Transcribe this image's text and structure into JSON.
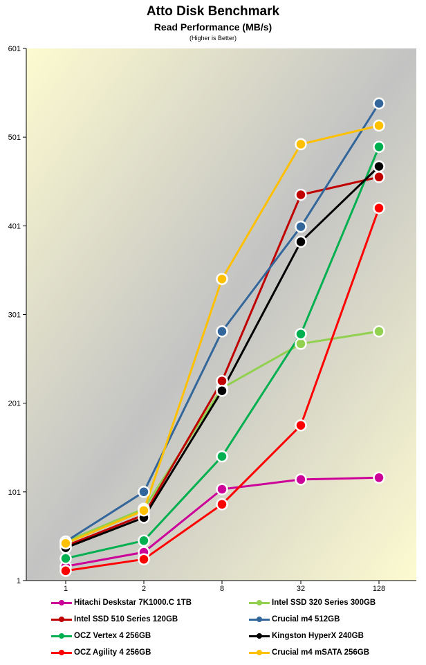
{
  "chart_data": {
    "type": "line",
    "title": "Atto Disk Benchmark",
    "subtitle": "Read Performance (MB/s)",
    "note": "(Higher is Better)",
    "xlabel": "",
    "ylabel": "",
    "categories": [
      "1",
      "2",
      "8",
      "32",
      "128"
    ],
    "yticks": [
      1,
      101,
      201,
      301,
      401,
      501,
      601
    ],
    "ylim": [
      1,
      601
    ],
    "grid": false,
    "legend_position": "bottom",
    "series": [
      {
        "name": "Hitachi Deskstar 7K1000.C 1TB",
        "color": "#cc0099",
        "values": [
          17,
          33,
          104,
          115,
          117
        ]
      },
      {
        "name": "Intel SSD 320 Series 300GB",
        "color": "#92d050",
        "values": [
          45,
          82,
          218,
          268,
          282
        ]
      },
      {
        "name": "Intel SSD 510 Series 120GB",
        "color": "#c00000",
        "values": [
          40,
          75,
          226,
          436,
          456
        ]
      },
      {
        "name": "Crucial m4 512GB",
        "color": "#33669a",
        "values": [
          45,
          101,
          282,
          400,
          539
        ]
      },
      {
        "name": "OCZ Vertex 4 256GB",
        "color": "#00b050",
        "values": [
          26,
          46,
          141,
          279,
          490
        ]
      },
      {
        "name": "Kingston HyperX 240GB",
        "color": "#000000",
        "values": [
          38,
          72,
          215,
          383,
          468
        ]
      },
      {
        "name": "OCZ Agility 4 256GB",
        "color": "#ff0000",
        "values": [
          12,
          25,
          87,
          176,
          421
        ]
      },
      {
        "name": "Crucial m4 mSATA 256GB",
        "color": "#ffc000",
        "values": [
          43,
          80,
          341,
          493,
          514
        ]
      }
    ]
  }
}
